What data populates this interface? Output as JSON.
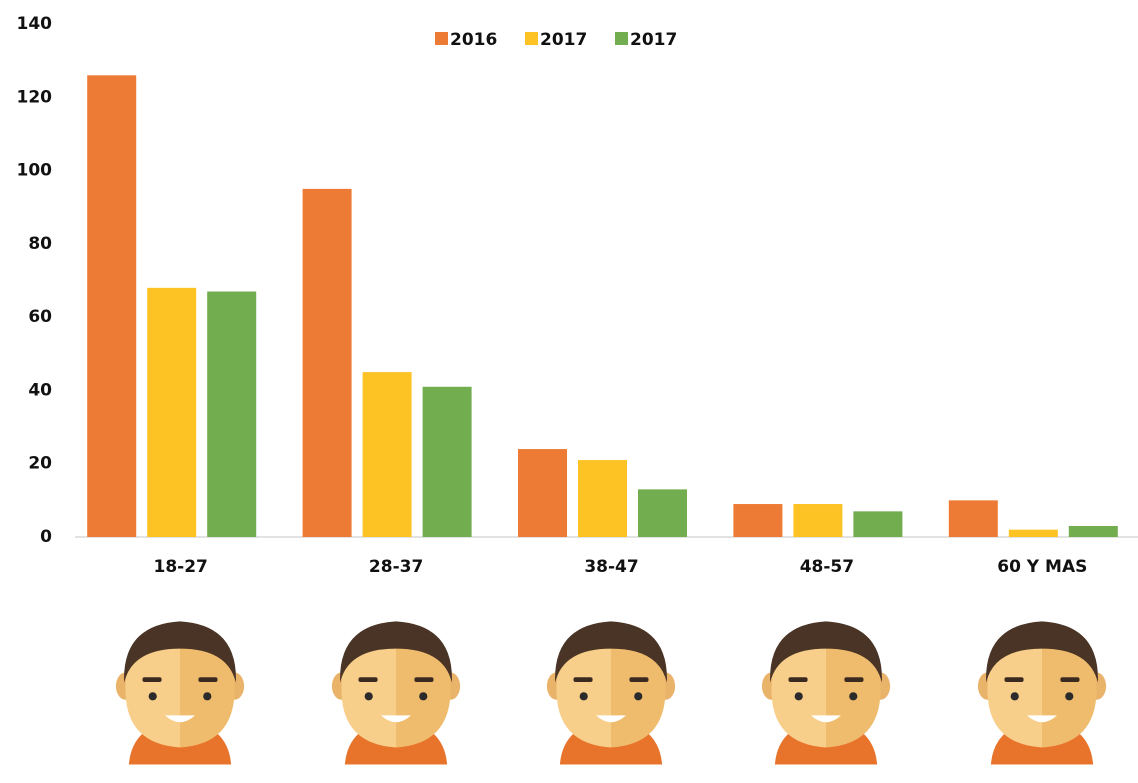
{
  "chart_data": {
    "type": "bar",
    "categories": [
      "18-27",
      "28-37",
      "38-47",
      "48-57",
      "60 Y MAS"
    ],
    "series": [
      {
        "name": "2016",
        "color": "#ee7b35",
        "values": [
          126,
          95,
          24,
          9,
          10
        ]
      },
      {
        "name": "2017",
        "color": "#fdc224",
        "values": [
          68,
          45,
          21,
          9,
          2
        ]
      },
      {
        "name": "2017",
        "color": "#72ad4f",
        "values": [
          67,
          41,
          13,
          7,
          3
        ]
      }
    ],
    "ylim": [
      0,
      140
    ],
    "yticks": [
      0,
      20,
      40,
      60,
      80,
      100,
      120,
      140
    ],
    "grid": false
  }
}
